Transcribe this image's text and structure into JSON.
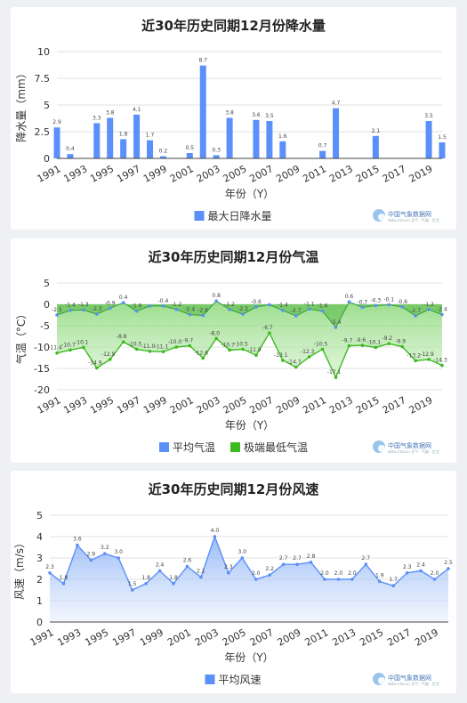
{
  "brand": {
    "logo_text": "中国气象数据网",
    "logo_sub": "data.cma.cn  天气 · 气候 · 生活"
  },
  "colors": {
    "bar": "#5b8ff9",
    "line": "#5b8ff9",
    "green": "#3cba1e",
    "axis": "#333333"
  },
  "chart_data": [
    {
      "type": "bar",
      "title": "近30年历史同期12月份降水量",
      "xlabel": "年份（Y）",
      "ylabel": "降水量（mm）",
      "ylim": [
        0,
        10
      ],
      "yticks": [
        0,
        2.5,
        5,
        7.5,
        10
      ],
      "ytick_labels": [
        "0",
        "2.5",
        "5",
        "7.5",
        "10"
      ],
      "x": [
        1991,
        1992,
        1993,
        1994,
        1995,
        1996,
        1997,
        1998,
        1999,
        2000,
        2001,
        2002,
        2003,
        2004,
        2005,
        2006,
        2007,
        2008,
        2009,
        2010,
        2011,
        2012,
        2013,
        2014,
        2015,
        2016,
        2017,
        2018,
        2019,
        2020
      ],
      "xtick_labels": [
        "1991",
        "1993",
        "1995",
        "1997",
        "1999",
        "2001",
        "2003",
        "2005",
        "2007",
        "2009",
        "2011",
        "2013",
        "2015",
        "2017",
        "2019"
      ],
      "series": [
        {
          "name": "最大日降水量",
          "values": [
            2.9,
            0.4,
            0,
            3.3,
            3.8,
            1.8,
            4.1,
            1.7,
            0.2,
            0,
            0.5,
            8.7,
            0.3,
            3.8,
            0,
            3.6,
            3.5,
            1.6,
            0,
            0,
            0.7,
            4.7,
            0,
            0,
            2.1,
            0,
            0,
            0,
            3.5,
            1.5
          ],
          "labels": [
            "2.9",
            "0.4",
            "",
            "3.3",
            "3.8",
            "1.8",
            "4.1",
            "1.7",
            "0.2",
            "",
            "0.5",
            "8.7",
            "0.3",
            "3.8",
            "",
            "3.6",
            "3.5",
            "1.6",
            "",
            "",
            "0.7",
            "4.7",
            "",
            "",
            "2.1",
            "",
            "",
            "",
            "3.5",
            "1.5"
          ]
        }
      ],
      "legend": "bottom",
      "grid": true
    },
    {
      "type": "area",
      "title": "近30年历史同期12月份气温",
      "xlabel": "年份（Y）",
      "ylabel": "气温（°C）",
      "ylim": [
        -20,
        5
      ],
      "yticks": [
        5,
        0,
        -5,
        -10,
        -15,
        -20
      ],
      "ytick_labels": [
        "5",
        "0",
        "-5",
        "-10",
        "-15",
        "-20"
      ],
      "x": [
        1991,
        1992,
        1993,
        1994,
        1995,
        1996,
        1997,
        1998,
        1999,
        2000,
        2001,
        2002,
        2003,
        2004,
        2005,
        2006,
        2007,
        2008,
        2009,
        2010,
        2011,
        2012,
        2013,
        2014,
        2015,
        2016,
        2017,
        2018,
        2019,
        2020
      ],
      "xtick_labels": [
        "1991",
        "1993",
        "1995",
        "1997",
        "1999",
        "2001",
        "2003",
        "2005",
        "2007",
        "2009",
        "2011",
        "2013",
        "2015",
        "2017",
        "2019"
      ],
      "series": [
        {
          "name": "平均气温",
          "values": [
            -2.5,
            -1.4,
            -1.3,
            -2.3,
            -0.9,
            0.4,
            -1.6,
            -0.4,
            -0.4,
            -1.2,
            -2.4,
            -2.6,
            0.8,
            -1.2,
            -2.3,
            -0.6,
            -0.1,
            -1.4,
            -2.7,
            -1.1,
            -1.6,
            -5.4,
            0.6,
            -0.7,
            -0.3,
            -0.1,
            -0.6,
            -2.7,
            -1.2,
            -2.4
          ],
          "labels": [
            "-2.5",
            "-1.4",
            "-1.3",
            "-2.3",
            "-0.9",
            "0.4",
            "-1.6",
            "",
            "-0.4",
            "-1.2",
            "-2.4",
            "-2.6",
            "0.8",
            "-1.2",
            "-2.3",
            "-0.6",
            "",
            "-1.4",
            "-2.7",
            "-1.1",
            "-1.6",
            "-5.4",
            "0.6",
            "-0.7",
            "-0.3",
            "-0.1",
            "-0.6",
            "-2.7",
            "-1.2",
            "-2.4"
          ]
        },
        {
          "name": "极端最低气温",
          "values": [
            -11.4,
            -10.7,
            -10.1,
            -14.9,
            -12.9,
            -8.8,
            -10.5,
            -11.0,
            -11.1,
            -10.0,
            -9.7,
            -12.6,
            -8.0,
            -10.7,
            -10.5,
            -11.9,
            -6.7,
            -13.1,
            -14.7,
            -12.3,
            -10.5,
            -17.1,
            -9.7,
            -9.6,
            -10.1,
            -9.2,
            -9.9,
            -13.2,
            -12.9,
            -14.3
          ],
          "labels": [
            "-11.4",
            "-10.7",
            "-10.1",
            "-14.9",
            "-12.9",
            "-8.8",
            "-10.5",
            "-11.0",
            "-11.1",
            "-10.0",
            "-9.7",
            "-12.6",
            "-8.0",
            "-10.7",
            "-10.5",
            "-11.9",
            "-6.7",
            "-13.1",
            "-14.7",
            "-12.3",
            "-10.5",
            "-17.1",
            "-9.7",
            "-9.6",
            "-10.1",
            "-9.2",
            "-9.9",
            "-13.2",
            "-12.9",
            "-14.3"
          ]
        }
      ],
      "legend": "bottom",
      "grid": true
    },
    {
      "type": "area",
      "title": "近30年历史同期12月份风速",
      "xlabel": "年份（Y）",
      "ylabel": "风速（m/s）",
      "ylim": [
        0,
        5
      ],
      "yticks": [
        0,
        1,
        2,
        3,
        4,
        5
      ],
      "ytick_labels": [
        "0",
        "1",
        "2",
        "3",
        "4",
        "5"
      ],
      "x": [
        1991,
        1992,
        1993,
        1994,
        1995,
        1996,
        1997,
        1998,
        1999,
        2000,
        2001,
        2002,
        2003,
        2004,
        2005,
        2006,
        2007,
        2008,
        2009,
        2010,
        2011,
        2012,
        2013,
        2014,
        2015,
        2016,
        2017,
        2018,
        2019,
        2020
      ],
      "xtick_labels": [
        "1991",
        "1993",
        "1995",
        "1997",
        "1999",
        "2001",
        "2003",
        "2005",
        "2007",
        "2009",
        "2011",
        "2013",
        "2015",
        "2017",
        "2019"
      ],
      "series": [
        {
          "name": "平均风速",
          "values": [
            2.3,
            1.8,
            3.6,
            2.9,
            3.2,
            3.0,
            1.5,
            1.8,
            2.4,
            1.8,
            2.6,
            2.1,
            4.0,
            2.3,
            3.0,
            2.0,
            2.2,
            2.7,
            2.7,
            2.8,
            2.0,
            2.0,
            2.0,
            2.7,
            1.9,
            1.7,
            2.3,
            2.4,
            2.0,
            2.5
          ],
          "labels": [
            "2.3",
            "1.8",
            "3.6",
            "2.9",
            "3.2",
            "3.0",
            "1.5",
            "1.8",
            "2.4",
            "1.8",
            "2.6",
            "2.1",
            "4.0",
            "2.3",
            "3.0",
            "2.0",
            "2.2",
            "2.7",
            "2.7",
            "2.8",
            "2.0",
            "2.0",
            "2.0",
            "2.7",
            "1.9",
            "1.7",
            "2.3",
            "2.4",
            "2.0",
            "2.5"
          ]
        }
      ],
      "legend": "bottom",
      "grid": true
    }
  ]
}
